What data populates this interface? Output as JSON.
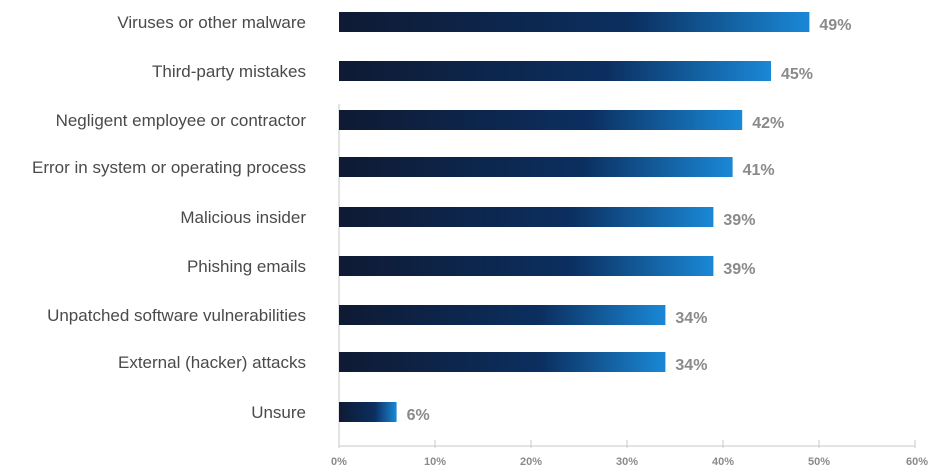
{
  "chart_data": {
    "type": "bar",
    "orientation": "horizontal",
    "categories": [
      "Viruses or other malware",
      "Third-party mistakes",
      "Negligent employee or contractor",
      "Error in system or operating process",
      "Malicious insider",
      "Phishing emails",
      "Unpatched software vulnerabilities",
      "External (hacker) attacks",
      "Unsure"
    ],
    "values": [
      49,
      45,
      42,
      41,
      39,
      39,
      34,
      34,
      6
    ],
    "data_labels": [
      "49%",
      "45%",
      "42%",
      "41%",
      "39%",
      "39%",
      "34%",
      "34%",
      "6%"
    ],
    "xlim": [
      0,
      60
    ],
    "x_ticks": [
      0,
      10,
      20,
      30,
      40,
      50,
      60
    ],
    "x_tick_labels": [
      "0%",
      "10%",
      "20%",
      "30%",
      "40%",
      "50%",
      "60%"
    ],
    "title": "",
    "xlabel": "",
    "ylabel": "",
    "grid": false,
    "legend": "none"
  },
  "colors": {
    "bar_start": "#0f1a33",
    "bar_mid": "#0b2f60",
    "bar_end": "#1a88d6",
    "category_text": "#4a4a4a",
    "value_text": "#8a8a8a",
    "axis_line": "#c8c8c8"
  }
}
